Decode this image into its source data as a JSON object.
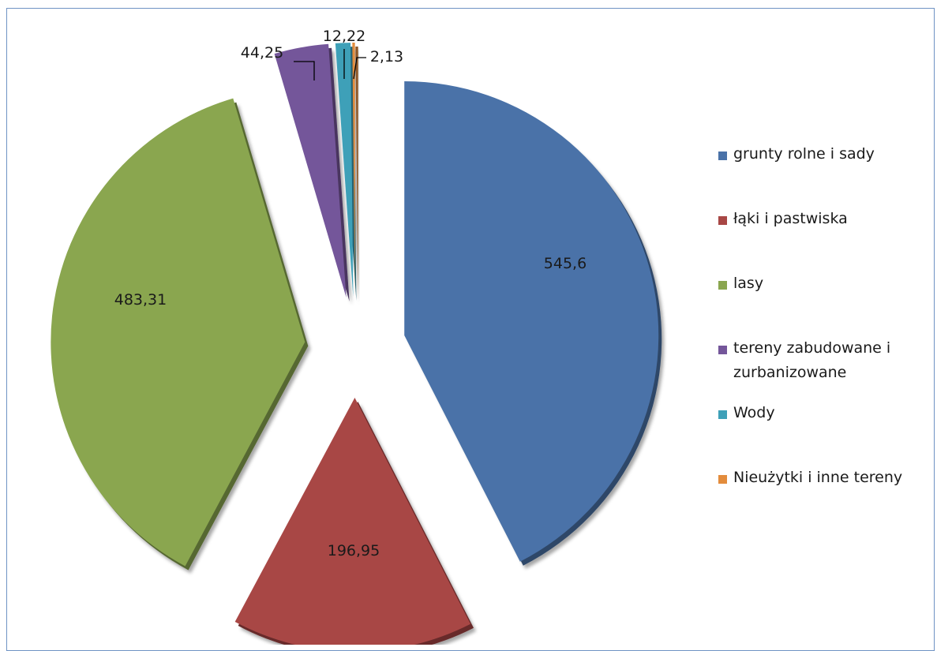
{
  "chart_data": {
    "type": "pie",
    "exploded": true,
    "style": "3d-bevel",
    "legend_position": "right",
    "categories": [
      "grunty rolne i sady",
      "łąki i pastwiska",
      "lasy",
      "tereny zabudowane i zurbanizowane",
      "Wody",
      "Nieużytki i inne tereny"
    ],
    "values": [
      545.6,
      196.95,
      483.31,
      44.25,
      12.22,
      2.13
    ],
    "value_labels": [
      "545,6",
      "196,95",
      "483,31",
      "44,25",
      "12,22",
      "2,13"
    ],
    "colors": [
      "#4a72a8",
      "#a84745",
      "#8aa64f",
      "#74569a",
      "#3ea0b8",
      "#e38c3c"
    ]
  }
}
